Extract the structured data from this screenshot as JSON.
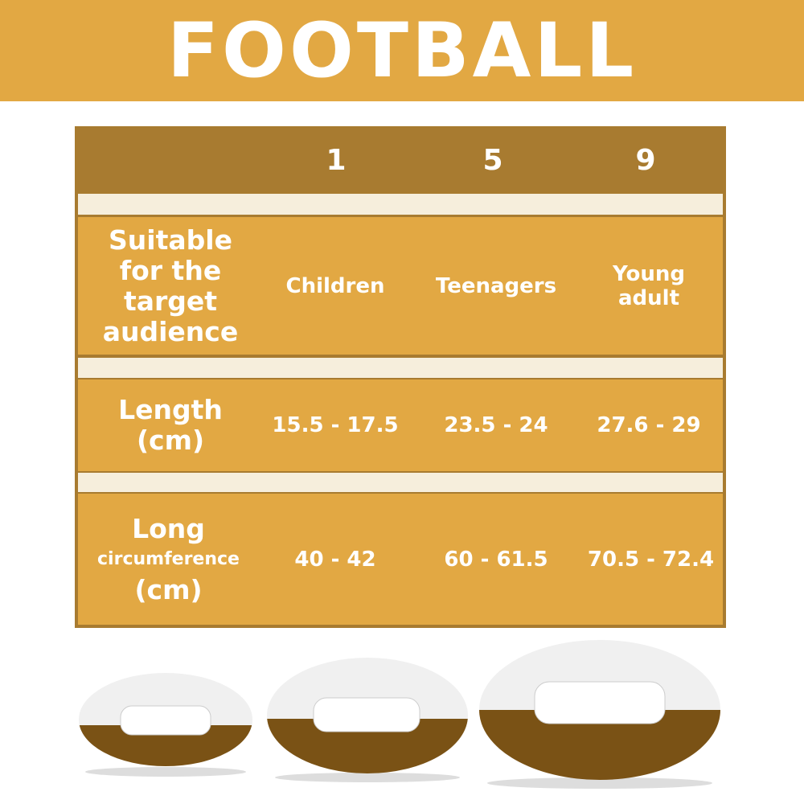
{
  "title": "FOOTBALL",
  "table": {
    "sizes": [
      "1",
      "5",
      "9"
    ],
    "rows": [
      {
        "label": "Suitable for the target audience",
        "values": [
          "Children",
          "Teenagers",
          "Young adult"
        ]
      },
      {
        "label_main": "Length",
        "label_unit": "(cm)",
        "values": [
          "15.5 - 17.5",
          "23.5 - 24",
          "27.6 - 29"
        ]
      },
      {
        "label_main": "Long",
        "label_sub": "circumference",
        "label_unit": "(cm)",
        "values": [
          "40 - 42",
          "60 - 61.5",
          "70.5 - 72.4"
        ]
      }
    ]
  },
  "colors": {
    "banner": "#E2A843",
    "header": "#A87B30",
    "cell": "#E2A843",
    "separator": "#F6EEDC",
    "ball_brown": "#6E4A12",
    "ball_white": "#F2F2F2"
  }
}
